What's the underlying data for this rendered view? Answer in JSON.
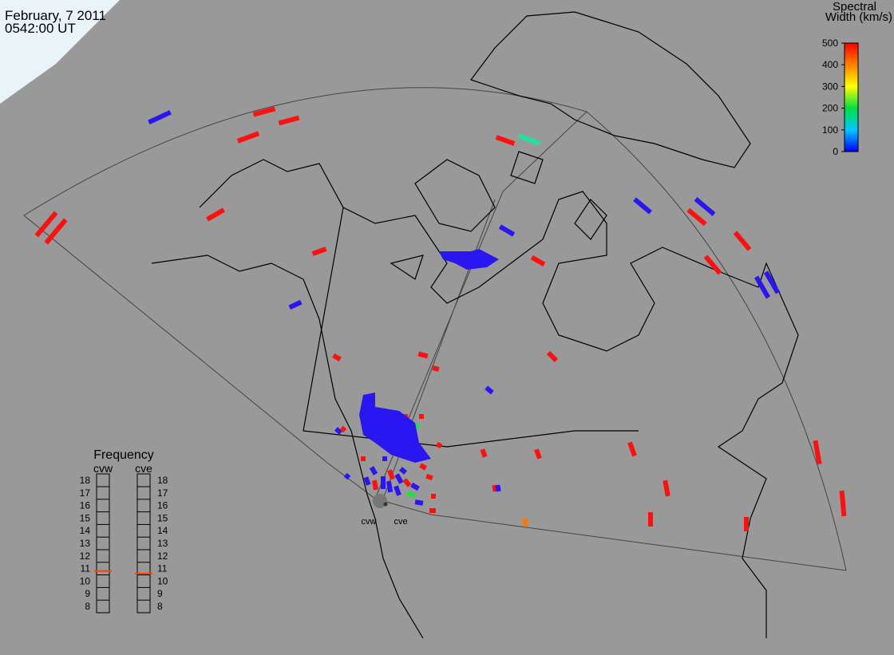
{
  "header": {
    "date": "February, 7 2011",
    "time": "0542:00 UT"
  },
  "colorbar": {
    "title": [
      "Spectral",
      "Width (km/s)"
    ],
    "lim": [
      0,
      500
    ],
    "ticks": [
      0,
      100,
      200,
      300,
      400,
      500
    ]
  },
  "frequency": {
    "title": "Frequency",
    "lim": [
      8,
      18
    ],
    "ticks": [
      8,
      9,
      10,
      11,
      12,
      13,
      14,
      15,
      16,
      17,
      18
    ],
    "radars": [
      {
        "name": "cvw",
        "value": 10.8
      },
      {
        "name": "cve",
        "value": 10.6
      }
    ]
  },
  "site_labels": [
    "cvw",
    "cve"
  ]
}
